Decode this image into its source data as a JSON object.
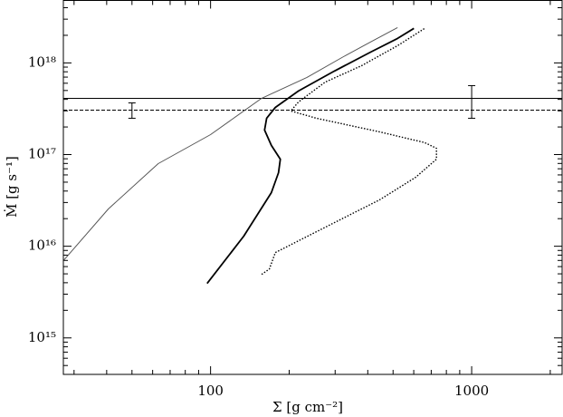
{
  "chart_data": {
    "type": "line",
    "xlabel": "Σ [g cm⁻²]",
    "ylabel": "Ṁ [g s⁻¹]",
    "xlog": true,
    "ylog": true,
    "minor_ticks": true,
    "xlim": [
      27.3,
      2220
    ],
    "ylim": [
      400000000000000.0,
      4.8e+18
    ],
    "xticks": [
      100,
      1000
    ],
    "yticks": [
      {
        "value": 1000000000000000.0,
        "label": "10¹⁵"
      },
      {
        "value": 1e+16,
        "label": "10¹⁶"
      },
      {
        "value": 1e+17,
        "label": "10¹⁷"
      },
      {
        "value": 1e+18,
        "label": "10¹⁸"
      }
    ],
    "series": [
      {
        "color": "#555555",
        "width": 1,
        "dash": "none",
        "x": [
          27.3,
          40.6,
          63,
          100,
          157,
          234,
          323,
          410,
          520
        ],
        "values": [
          6950000000000000.0,
          2.55e+16,
          7.96e+16,
          1.65e+17,
          4.11e+17,
          6.95e+17,
          1.17e+18,
          1.69e+18,
          2.43e+18
        ]
      },
      {
        "color": "#000000",
        "width": 1.8,
        "dash": "none",
        "x": [
          97,
          134,
          171,
          182,
          185,
          171,
          161,
          164,
          177,
          217,
          298,
          410,
          520,
          601
        ],
        "values": [
          3930000000000000.0,
          1.29e+16,
          3.84e+16,
          6.34e+16,
          8.9e+16,
          1.26e+17,
          1.85e+17,
          2.49e+17,
          3.27e+17,
          4.93e+17,
          8.15e+17,
          1.31e+18,
          1.85e+18,
          2.38e+18
        ]
      },
      {
        "color": "#000000",
        "width": 1.4,
        "dash": "1.5,1.8",
        "x": [
          157,
          168,
          177,
          298,
          443,
          610,
          733,
          733,
          661,
          443,
          254,
          203,
          217,
          275,
          378,
          520,
          661
        ],
        "values": [
          4930000000000000.0,
          5650000000000000.0,
          8530000000000000.0,
          1.81e+16,
          3.2e+16,
          5.65e+16,
          8.9e+16,
          1.17e+17,
          1.35e+17,
          1.77e+17,
          2.49e+17,
          2.99e+17,
          3.75e+17,
          6.19e+17,
          9.3e+17,
          1.54e+18,
          2.38e+18
        ]
      }
    ],
    "hlines": [
      {
        "value": 4.11e+17,
        "dash": "none"
      },
      {
        "value": 3.05e+17,
        "dash": "4,2"
      }
    ],
    "error_bars": [
      {
        "x": 50,
        "value": 3.05e+17,
        "low": 2.49e+17,
        "high": 3.66e+17
      },
      {
        "x": 1000,
        "value": 4.11e+17,
        "low": 2.49e+17,
        "high": 5.65e+17
      }
    ]
  }
}
